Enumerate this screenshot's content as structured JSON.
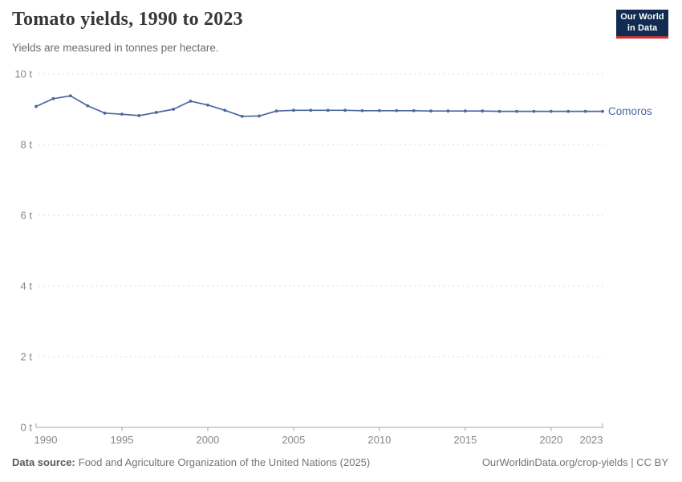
{
  "header": {
    "title": "Tomato yields, 1990 to 2023",
    "subtitle": "Yields are measured in tonnes per hectare."
  },
  "logo": {
    "line1": "Our World",
    "line2": "in Data",
    "bg_color": "#112b51",
    "stripe_color": "#ca3335"
  },
  "chart_data": {
    "type": "line",
    "title": "Tomato yields, 1990 to 2023",
    "subtitle": "Yields are measured in tonnes per hectare.",
    "xlabel": "",
    "ylabel": "tonnes per hectare",
    "unit": "t",
    "ylim": [
      0,
      10
    ],
    "yticks": [
      0,
      2,
      4,
      6,
      8,
      10
    ],
    "ytick_labels": [
      "0 t",
      "2 t",
      "4 t",
      "6 t",
      "8 t",
      "10 t"
    ],
    "xticks": [
      1990,
      1995,
      2000,
      2005,
      2010,
      2015,
      2020,
      2023
    ],
    "grid": "horizontal-dashed",
    "legend_position": "end-of-line-label",
    "x": [
      1990,
      1991,
      1992,
      1993,
      1994,
      1995,
      1996,
      1997,
      1998,
      1999,
      2000,
      2001,
      2002,
      2003,
      2004,
      2005,
      2006,
      2007,
      2008,
      2009,
      2010,
      2011,
      2012,
      2013,
      2014,
      2015,
      2016,
      2017,
      2018,
      2019,
      2020,
      2021,
      2022,
      2023
    ],
    "series": [
      {
        "name": "Comoros",
        "color": "#4a67a3",
        "values": [
          9.08,
          9.3,
          9.38,
          9.1,
          8.89,
          8.86,
          8.82,
          8.91,
          9.0,
          9.23,
          9.12,
          8.97,
          8.8,
          8.81,
          8.95,
          8.97,
          8.97,
          8.97,
          8.97,
          8.96,
          8.96,
          8.96,
          8.96,
          8.95,
          8.95,
          8.95,
          8.95,
          8.94,
          8.94,
          8.94,
          8.94,
          8.94,
          8.94,
          8.94
        ]
      }
    ],
    "axis_color": "#a7a7a7",
    "grid_color": "#dedede"
  },
  "footer": {
    "source_label": "Data source:",
    "source_text": "Food and Agriculture Organization of the United Nations (2025)",
    "credit_link": "OurWorldinData.org/crop-yields",
    "separator": " | ",
    "license": "CC BY"
  }
}
